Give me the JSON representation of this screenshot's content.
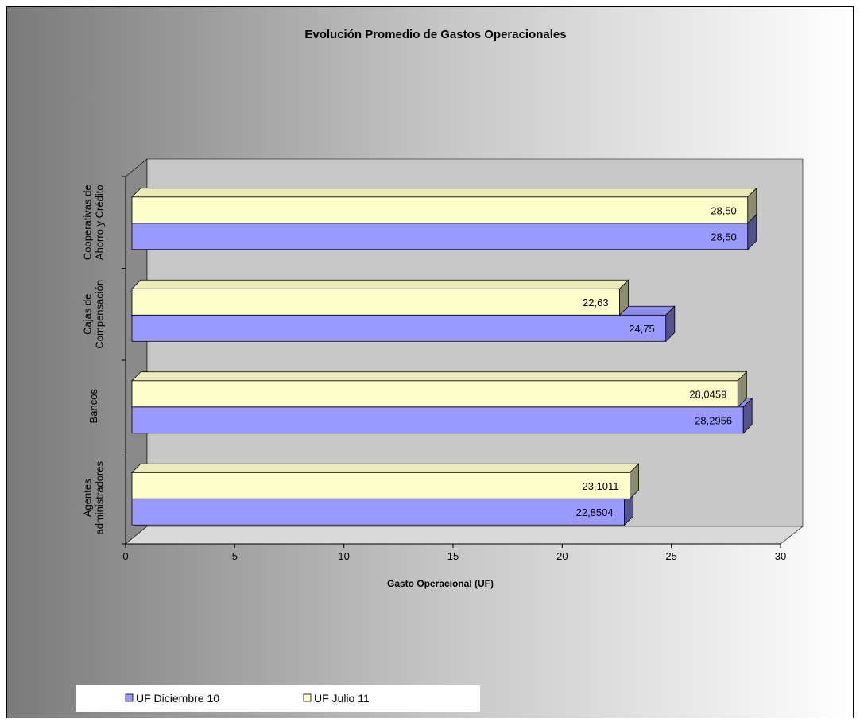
{
  "chart_data": {
    "type": "bar",
    "orientation": "horizontal",
    "title": "Evolución Promedio de Gastos Operacionales",
    "xlabel": "Gasto Operacional (UF)",
    "ylabel": "",
    "xlim": [
      0,
      30
    ],
    "x_ticks": [
      "0",
      "5",
      "10",
      "15",
      "20",
      "25",
      "30"
    ],
    "categories": [
      [
        "Agentes",
        "administradores"
      ],
      [
        "Bancos"
      ],
      [
        "Cajas de",
        "Compensación"
      ],
      [
        "Cooperativas de",
        "Ahorro y Crédito"
      ]
    ],
    "series": [
      {
        "name": "UF Diciembre 10",
        "color": "#9999FF",
        "values": [
          22.8504,
          28.2956,
          24.75,
          28.5
        ],
        "labels": [
          "22,8504",
          "28,2956",
          "24,75",
          "28,50"
        ]
      },
      {
        "name": "UF Julio 11",
        "color": "#FFFFCC",
        "values": [
          23.1011,
          28.0459,
          22.63,
          28.5
        ],
        "labels": [
          "23,1011",
          "28,0459",
          "22,63",
          "28,50"
        ]
      }
    ],
    "grid": false,
    "legend_position": "bottom-left",
    "style": "3d-clustered"
  }
}
